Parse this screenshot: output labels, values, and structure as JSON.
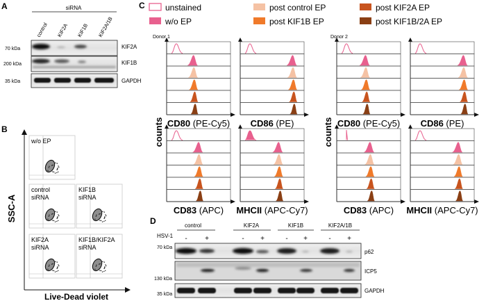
{
  "panels": {
    "a": {
      "label": "A",
      "header": "siRNA",
      "lanes": [
        "control",
        "KIF2A",
        "KIF1B",
        "KIF2A/1B"
      ],
      "blots": [
        {
          "marker": "70 kDa",
          "protein": "KIF2A"
        },
        {
          "marker": "200 kDa",
          "protein": "KIF1B"
        },
        {
          "marker": "35 kDa",
          "protein": "GAPDH"
        }
      ]
    },
    "b": {
      "label": "B",
      "ylabel": "SSC-A",
      "xlabel": "Live-Dead violet",
      "plots": [
        {
          "line1": "w/o EP",
          "line2": ""
        },
        {
          "line1": "control",
          "line2": "siRNA"
        },
        {
          "line1": "KIF1B",
          "line2": "siRNA"
        },
        {
          "line1": "KIF2A",
          "line2": "siRNA"
        },
        {
          "line1": "KIF1B/KIF2A",
          "line2": "siRNA"
        }
      ]
    },
    "c": {
      "label": "C",
      "ylabel": "counts",
      "donors": [
        "Donor 1",
        "Donor 2"
      ],
      "legend": [
        "unstained",
        "post control EP",
        "post KIF2A EP",
        "w/o EP",
        "post KIF1B EP",
        "post KIF1B/2A EP"
      ],
      "markers": [
        {
          "name": "CD80",
          "fluor": "(PE-Cy5)"
        },
        {
          "name": "CD86",
          "fluor": "(PE)"
        },
        {
          "name": "CD80",
          "fluor": "(PE-Cy5)"
        },
        {
          "name": "CD86",
          "fluor": "(PE)"
        },
        {
          "name": "CD83",
          "fluor": "(APC)"
        },
        {
          "name": "MHCII",
          "fluor": "(APC-Cy7)"
        },
        {
          "name": "CD83",
          "fluor": "(APC)"
        },
        {
          "name": "MHCII",
          "fluor": "(APC-Cy7)"
        }
      ],
      "colors": {
        "unstained": "#e8608e",
        "wo_ep": "#e8608e",
        "control": "#f5c2a4",
        "kif1b": "#f07a2a",
        "kif2a": "#c8541e",
        "kif1b2a": "#8a3f14"
      }
    },
    "d": {
      "label": "D",
      "treatment": "HSV-1",
      "groups": [
        "control",
        "KIF2A",
        "KIF1B",
        "KIF2A/1B"
      ],
      "signs": [
        "-",
        "+",
        "-",
        "+",
        "-",
        "+",
        "-",
        "+"
      ],
      "blots": [
        {
          "marker": "70 kDa",
          "protein": "p62"
        },
        {
          "marker": "130 kDa",
          "protein": "ICP5"
        },
        {
          "marker": "35 kDa",
          "protein": "GAPDH"
        }
      ]
    }
  }
}
